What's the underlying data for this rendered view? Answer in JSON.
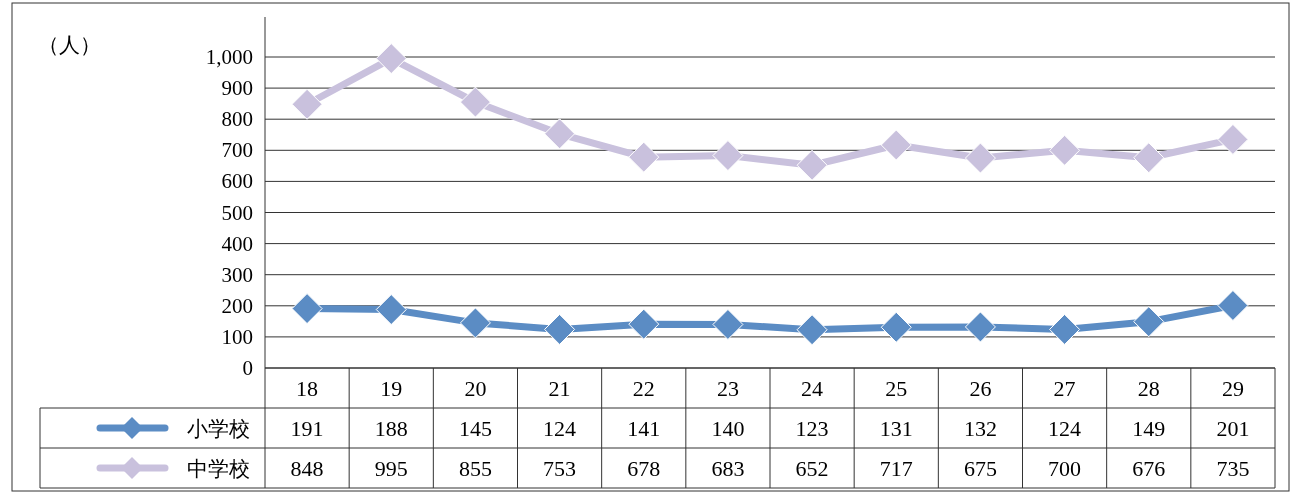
{
  "chart_data": {
    "type": "line",
    "ylabel": "（人）",
    "categories": [
      "18",
      "19",
      "20",
      "21",
      "22",
      "23",
      "24",
      "25",
      "26",
      "27",
      "28",
      "29"
    ],
    "series": [
      {
        "name": "小学校",
        "color": "#5b8cc4",
        "values": [
          191,
          188,
          145,
          124,
          141,
          140,
          123,
          131,
          132,
          124,
          149,
          201
        ]
      },
      {
        "name": "中学校",
        "color": "#c9c1dd",
        "values": [
          848,
          995,
          855,
          753,
          678,
          683,
          652,
          717,
          675,
          700,
          676,
          735
        ]
      }
    ],
    "ylim": [
      0,
      1000
    ],
    "yticks": [
      0,
      100,
      200,
      300,
      400,
      500,
      600,
      700,
      800,
      900,
      {
        "value": 1000,
        "label": "1,000"
      }
    ],
    "grid": "y",
    "marker": "diamond",
    "line_style": "solid",
    "data_labels": true,
    "legend": "bottom left"
  }
}
